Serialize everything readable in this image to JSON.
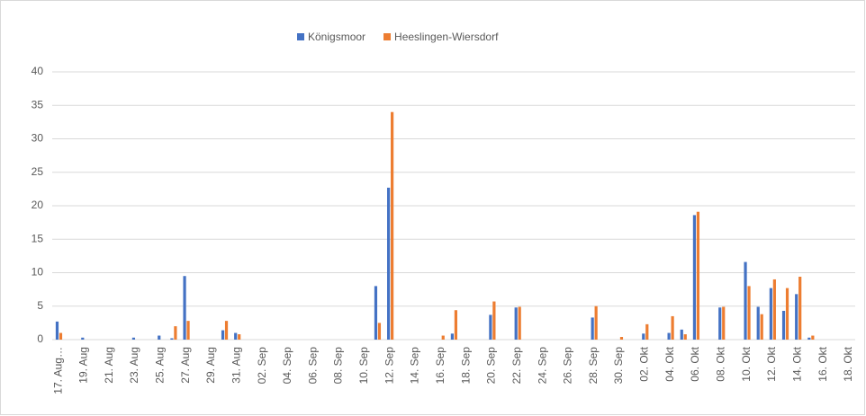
{
  "chart_data": {
    "type": "bar",
    "categories": [
      "17. Aug…",
      null,
      "19. Aug",
      null,
      "21. Aug",
      null,
      "23. Aug",
      null,
      "25. Aug",
      null,
      "27. Aug",
      null,
      "29. Aug",
      null,
      "31. Aug",
      null,
      "02. Sep",
      null,
      "04. Sep",
      null,
      "06. Sep",
      null,
      "08. Sep",
      null,
      "10. Sep",
      null,
      "12. Sep",
      null,
      "14. Sep",
      null,
      "16. Sep",
      null,
      "18. Sep",
      null,
      "20. Sep",
      null,
      "22. Sep",
      null,
      "24. Sep",
      null,
      "26. Sep",
      null,
      "28. Sep",
      null,
      "30. Sep",
      null,
      "02. Okt",
      null,
      "04. Okt",
      null,
      "06. Okt",
      null,
      "08. Okt",
      null,
      "10. Okt",
      null,
      "12. Okt",
      null,
      "14. Okt",
      null,
      "16. Okt",
      null,
      "18. Okt"
    ],
    "series": [
      {
        "name": "Königsmoor",
        "color": "#4472c4",
        "values": [
          2.7,
          0,
          0.3,
          0,
          0,
          0,
          0.3,
          0,
          0.6,
          0.2,
          9.5,
          0,
          0,
          1.4,
          1.0,
          0,
          0,
          0,
          0,
          0,
          0,
          0,
          0,
          0,
          0,
          8.0,
          22.7,
          0,
          0,
          0,
          0,
          0.9,
          0,
          0,
          3.7,
          0,
          4.8,
          0,
          0,
          0,
          0,
          0,
          3.3,
          0,
          0,
          0,
          0.9,
          0,
          1.0,
          1.5,
          18.6,
          0,
          4.8,
          0,
          11.6,
          4.9,
          7.7,
          4.3,
          6.8,
          0.3,
          0,
          0,
          0
        ]
      },
      {
        "name": "Heeslingen-Wiersdorf",
        "color": "#ed7d31",
        "values": [
          1.0,
          0,
          0,
          0,
          0,
          0,
          0,
          0,
          0,
          2.0,
          2.8,
          0,
          0,
          2.8,
          0.8,
          0,
          0,
          0,
          0,
          0,
          0,
          0,
          0,
          0,
          0,
          2.5,
          34,
          0,
          0,
          0,
          0.6,
          4.4,
          0,
          0,
          5.7,
          0,
          4.9,
          0,
          0,
          0,
          0,
          0,
          5.0,
          0,
          0.4,
          0,
          2.3,
          0,
          3.5,
          0.8,
          19.1,
          0,
          4.9,
          0,
          8.0,
          3.8,
          9.0,
          7.7,
          9.4,
          0.6,
          0,
          0,
          0
        ]
      }
    ],
    "ylim": [
      0,
      40
    ],
    "yticks": [
      0,
      5,
      10,
      15,
      20,
      25,
      30,
      35,
      40
    ],
    "grid": true,
    "legend": "top"
  }
}
